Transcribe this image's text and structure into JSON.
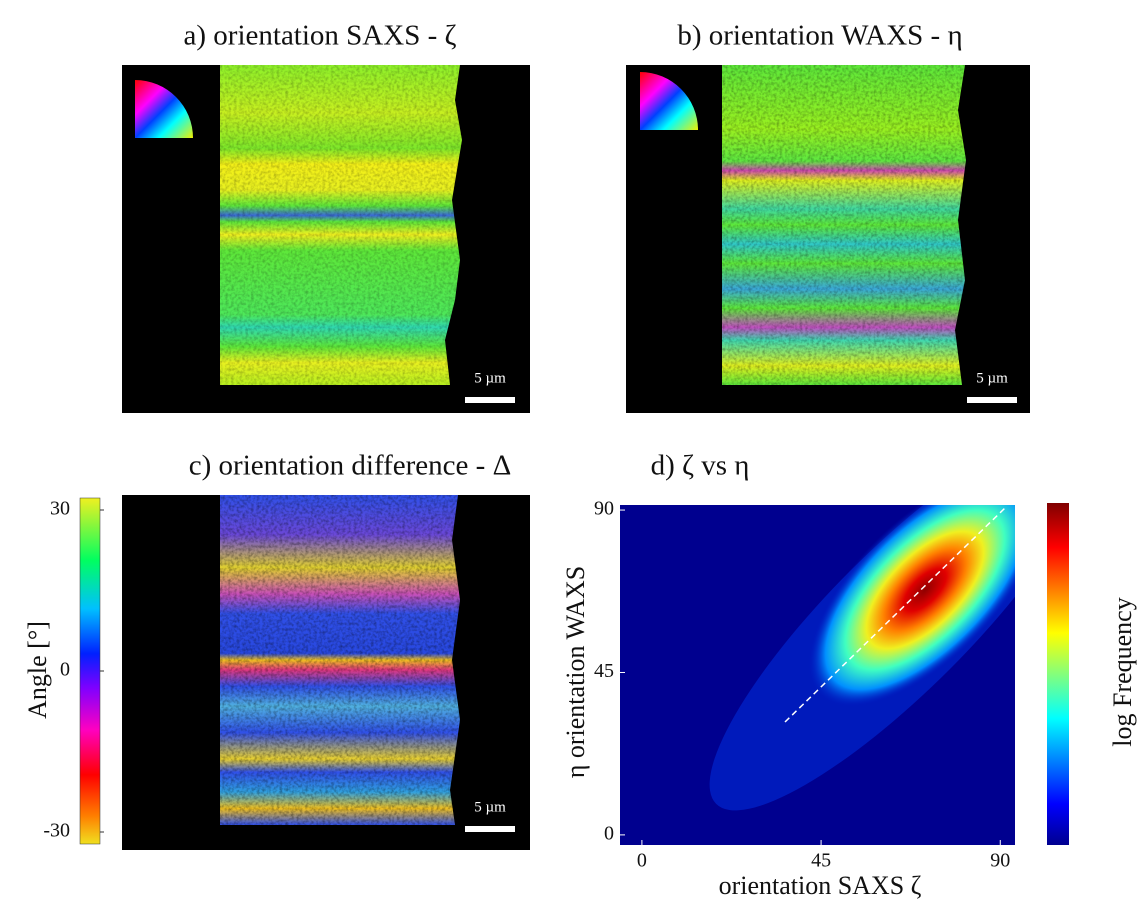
{
  "figure": {
    "panel_a": {
      "title": "a) orientation SAXS - ζ",
      "scale_bar": "5 µm"
    },
    "panel_b": {
      "title": "b) orientation WAXS - η",
      "scale_bar": "5 µm"
    },
    "panel_c": {
      "title": "c) orientation difference - Δ",
      "scale_bar": "5 µm",
      "colorbar": {
        "label": "Angle [°]",
        "lim": [
          -30,
          30
        ],
        "ticks": [
          -30,
          0,
          30
        ]
      }
    }
  },
  "chart_data": {
    "type": "heatmap",
    "title": "d) ζ vs η",
    "x_label": "orientation SAXS ζ",
    "y_label": "η orientation WAXS",
    "colorbar_label": "log Frequency",
    "xlim": [
      -5.5,
      93.7
    ],
    "ylim": [
      -2.8,
      91.4
    ],
    "xticks": [
      0,
      45,
      90
    ],
    "yticks": [
      0,
      45,
      90
    ]
  }
}
